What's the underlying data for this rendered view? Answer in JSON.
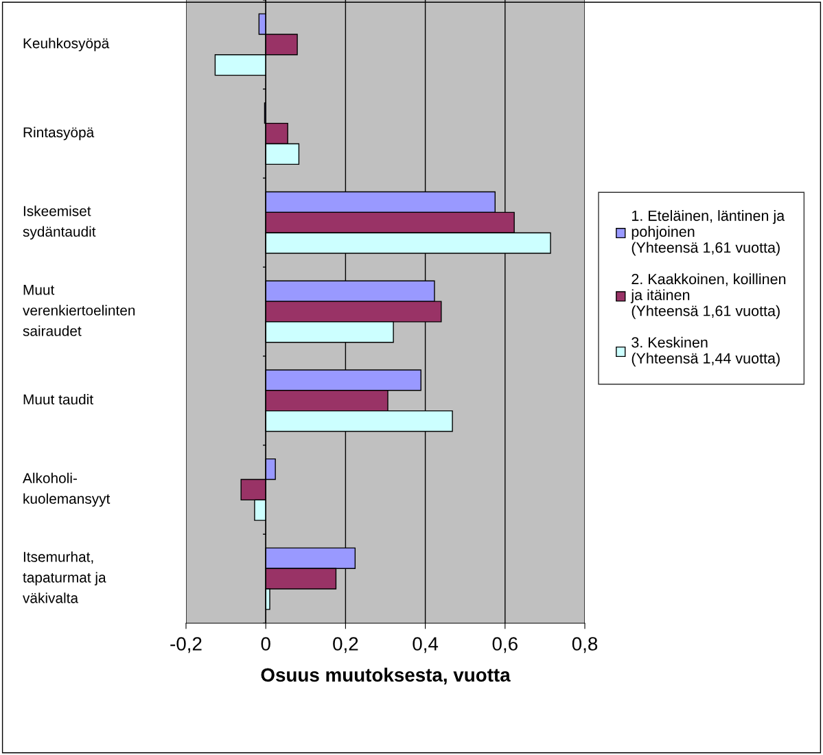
{
  "chart_data": {
    "type": "bar",
    "orientation": "horizontal",
    "xlabel": "Osuus muutoksesta, vuotta",
    "categories": [
      "Keuhkosyöpä",
      "Rintasyöpä",
      "Iskeemiset\nsydäntaudit",
      "Muut\nverenkiertoelinten\nsairaudet",
      "Muut taudit",
      "Alkoholi-\nkuolemansyyt",
      "Itsemurhat,\ntapaturmat ja\nväkivalta"
    ],
    "series": [
      {
        "name": "1. Eteläinen, läntinen ja\npohjoinen\n(Yhteensä 1,61 vuotta)",
        "color": "#9999ff",
        "values": [
          -0.017,
          -0.003,
          0.575,
          0.423,
          0.389,
          0.024,
          0.224
        ]
      },
      {
        "name": "2. Kaakkoinen, koillinen\nja itäinen\n(Yhteensä 1,61 vuotta)",
        "color": "#993366",
        "values": [
          0.079,
          0.055,
          0.623,
          0.44,
          0.306,
          -0.062,
          0.176
        ]
      },
      {
        "name": "3. Keskinen\n(Yhteensä 1,44 vuotta)",
        "color": "#ccffff",
        "values": [
          -0.127,
          0.083,
          0.714,
          0.32,
          0.468,
          -0.028,
          0.01
        ]
      }
    ],
    "xlim": [
      -0.2,
      0.8
    ],
    "xticks": [
      {
        "value": -0.2,
        "label": "-0,2"
      },
      0,
      {
        "value": 0.2,
        "label": "0,2"
      },
      {
        "value": 0.4,
        "label": "0,4"
      },
      {
        "value": 0.6,
        "label": "0,6"
      },
      {
        "value": 0.8,
        "label": "0,8"
      }
    ],
    "grid": "x",
    "legend": "right"
  }
}
